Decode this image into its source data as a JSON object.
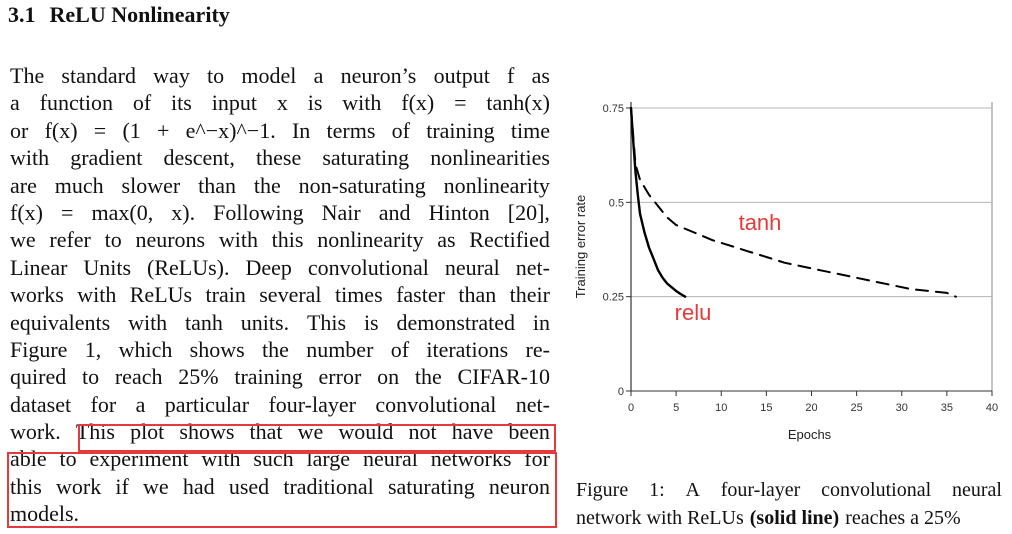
{
  "section": {
    "number": "3.1",
    "title": "ReLU Nonlinearity"
  },
  "paragraph": {
    "lines": [
      "The standard way to model a neuron’s output f as",
      "a function of its input x is with f(x) = tanh(x)",
      "or f(x) = (1 + e^−x)^−1. In terms of training time",
      "with gradient descent, these saturating nonlinearities",
      "are much slower than the non-saturating nonlinearity",
      "f(x) = max(0, x). Following Nair and Hinton [20],",
      "we refer to neurons with this nonlinearity as Rectified",
      "Linear Units (ReLUs). Deep convolutional neural net-",
      "works with ReLUs train several times faster than their",
      "equivalents with tanh units. This is demonstrated in",
      "Figure 1, which shows the number of iterations re-",
      "quired to reach 25% training error on the CIFAR-10",
      "dataset for a particular four-layer convolutional net-",
      "work. This plot shows that we would not have been",
      "able to experiment with such large neural networks for",
      "this work if we had used traditional saturating neuron",
      "models."
    ]
  },
  "caption": {
    "line1": "Figure 1: A four-layer convolutional neural",
    "line2_pre": "network with ReLUs",
    "line2_bold": "(solid line)",
    "line2_post": "reaches a 25%"
  },
  "highlight": {
    "color": "#e63a3a"
  },
  "chart_data": {
    "type": "line",
    "xlabel": "Epochs",
    "ylabel": "Training error rate",
    "xlim": [
      0,
      40
    ],
    "ylim": [
      0,
      0.75
    ],
    "x_ticks": [
      "0",
      "5",
      "10",
      "15",
      "20",
      "25",
      "30",
      "35",
      "40"
    ],
    "y_ticks": [
      "0",
      "0.25",
      "0.5",
      "0.75"
    ],
    "grid": "horizontal",
    "series": [
      {
        "name": "relu",
        "style": "solid",
        "color": "#000000",
        "x": [
          0,
          0.25,
          0.5,
          0.75,
          1,
          1.5,
          2,
          2.5,
          3,
          3.5,
          4,
          4.5,
          5,
          5.5,
          6
        ],
        "y": [
          0.75,
          0.66,
          0.58,
          0.52,
          0.47,
          0.42,
          0.38,
          0.35,
          0.32,
          0.3,
          0.285,
          0.275,
          0.265,
          0.257,
          0.25
        ]
      },
      {
        "name": "tanh",
        "style": "dashed",
        "color": "#000000",
        "x": [
          0,
          0.5,
          1,
          2,
          3,
          4,
          5,
          7,
          9,
          11,
          13,
          15,
          17,
          19,
          21,
          23,
          25,
          27,
          29,
          31,
          33,
          35,
          36
        ],
        "y": [
          0.75,
          0.6,
          0.56,
          0.52,
          0.49,
          0.46,
          0.44,
          0.42,
          0.4,
          0.385,
          0.37,
          0.355,
          0.34,
          0.33,
          0.32,
          0.31,
          0.3,
          0.29,
          0.28,
          0.27,
          0.265,
          0.26,
          0.25
        ]
      }
    ]
  }
}
